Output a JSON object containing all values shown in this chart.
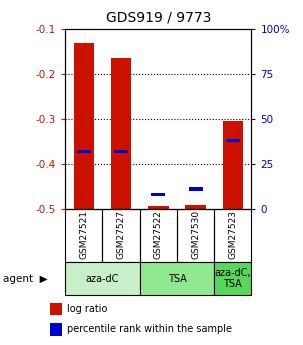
{
  "title": "GDS919 / 9773",
  "samples": [
    "GSM27521",
    "GSM27527",
    "GSM27522",
    "GSM27530",
    "GSM27523"
  ],
  "log_ratio": [
    -0.13,
    -0.165,
    -0.495,
    -0.492,
    -0.305
  ],
  "percentile_rank": [
    32,
    32,
    8,
    11,
    38
  ],
  "ylim_left": [
    -0.5,
    -0.1
  ],
  "ylim_right": [
    0,
    100
  ],
  "yticks_left": [
    -0.5,
    -0.4,
    -0.3,
    -0.2,
    -0.1
  ],
  "ytick_labels_left": [
    "-0.5",
    "-0.4",
    "-0.3",
    "-0.2",
    "-0.1"
  ],
  "yticks_right": [
    0,
    25,
    50,
    75,
    100
  ],
  "ytick_labels_right": [
    "0",
    "25",
    "50",
    "75",
    "100%"
  ],
  "bar_bottom": -0.5,
  "agent_groups": [
    {
      "label": "aza-dC",
      "start": 0,
      "end": 2,
      "color": "#c8f0c8"
    },
    {
      "label": "TSA",
      "start": 2,
      "end": 4,
      "color": "#90e890"
    },
    {
      "label": "aza-dC,\nTSA",
      "start": 4,
      "end": 5,
      "color": "#58d858"
    }
  ],
  "bar_color": "#cc1100",
  "square_color": "#0000cc",
  "background_color": "#ffffff",
  "plot_bg": "#ffffff",
  "left_axis_color": "#cc1100",
  "right_axis_color": "#0000cc",
  "legend_items": [
    {
      "color": "#cc1100",
      "label": "log ratio"
    },
    {
      "color": "#0000cc",
      "label": "percentile rank within the sample"
    }
  ],
  "agent_label": "agent",
  "sample_bg_color": "#d0d0d0"
}
